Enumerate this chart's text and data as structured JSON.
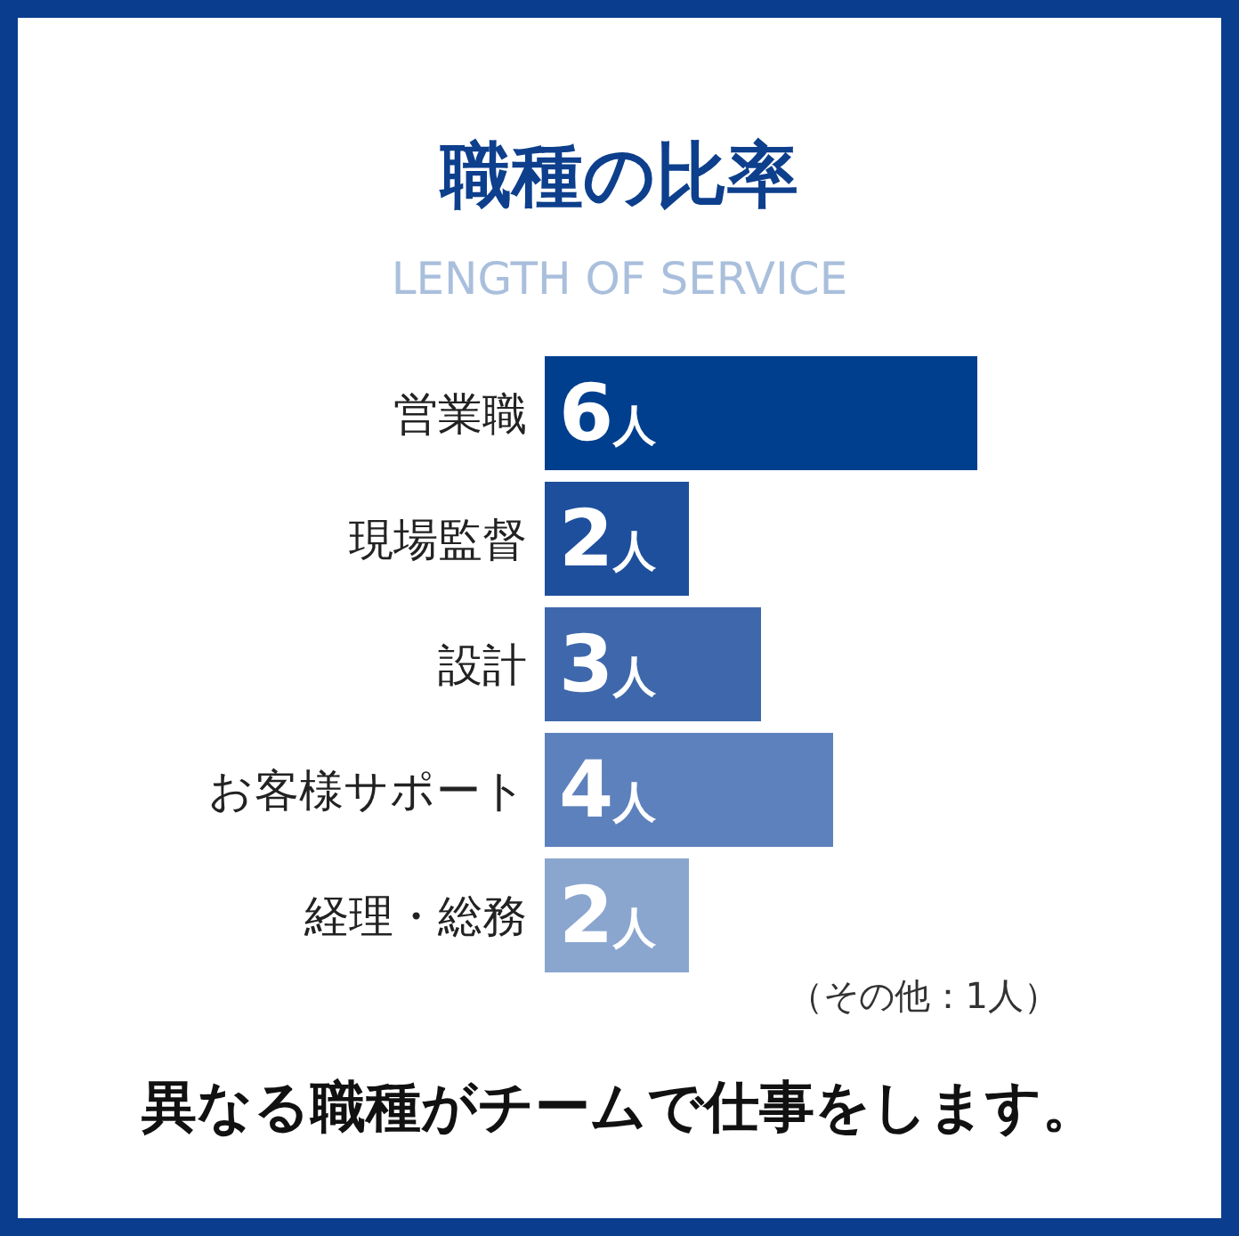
{
  "chart_data": {
    "type": "bar",
    "orientation": "horizontal",
    "title": "職種の比率",
    "subtitle": "LENGTH OF SERVICE",
    "categories": [
      "営業職",
      "現場監督",
      "設計",
      "お客様サポート",
      "経理・総務"
    ],
    "values": [
      6,
      2,
      3,
      4,
      2
    ],
    "colors": [
      "#003f8e",
      "#1e4f9c",
      "#3e68ab",
      "#5d81bc",
      "#8aa6cf"
    ],
    "value_labels": [
      "6人",
      "2人",
      "3人",
      "4人",
      "2人"
    ],
    "annotations": [
      "（その他：1人）",
      "異なる職種がチームで仕事をします。"
    ]
  }
}
